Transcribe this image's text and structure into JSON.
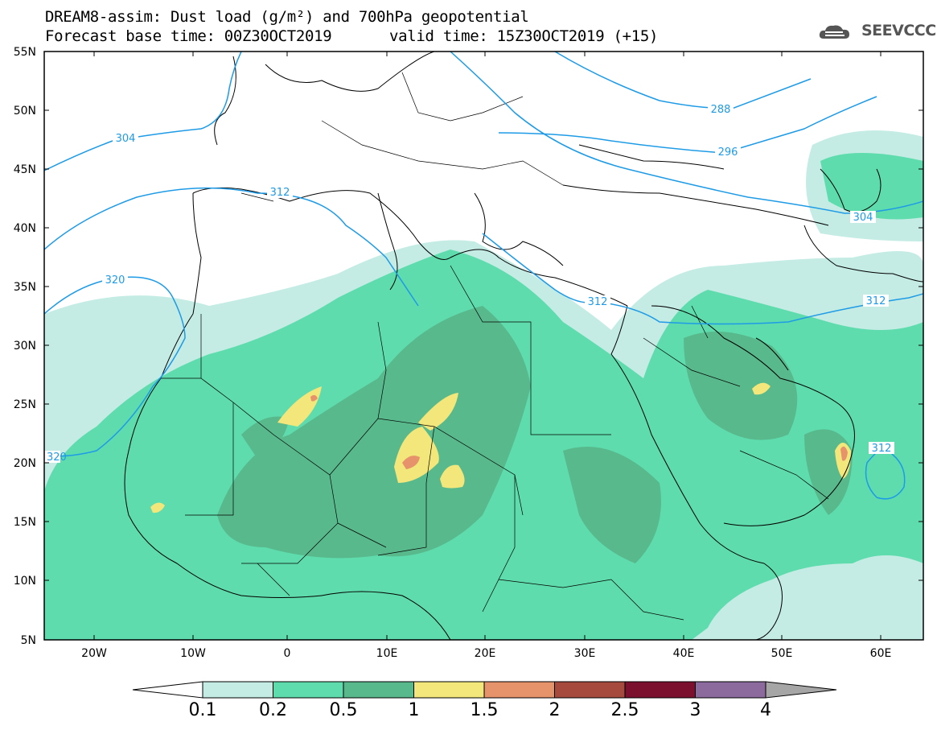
{
  "title": {
    "line1": "DREAM8-assim: Dust load (g/m²) and 700hPa geopotential",
    "line2": "Forecast base time: 00Z30OCT2019",
    "valid": "valid time: 15Z30OCT2019 (+15)"
  },
  "logo": {
    "text": "SEEVCCC",
    "icon": "cloud-icon"
  },
  "map": {
    "lat_labels": [
      "55N",
      "50N",
      "45N",
      "40N",
      "35N",
      "30N",
      "25N",
      "20N",
      "15N",
      "10N",
      "5N"
    ],
    "lon_labels": [
      "20W",
      "10W",
      "0",
      "10E",
      "20E",
      "30E",
      "40E",
      "50E",
      "60E"
    ],
    "contours": [
      {
        "label": "288"
      },
      {
        "label": "296"
      },
      {
        "label": "304"
      },
      {
        "label": "304"
      },
      {
        "label": "312"
      },
      {
        "label": "312"
      },
      {
        "label": "312"
      },
      {
        "label": "312"
      },
      {
        "label": "320"
      },
      {
        "label": "320"
      }
    ],
    "contour_color": "#1e9be6"
  },
  "colorbar": {
    "labels": [
      "0.1",
      "0.2",
      "0.5",
      "1",
      "1.5",
      "2",
      "2.5",
      "3",
      "4"
    ],
    "colors": [
      "#c4ece4",
      "#5fdcad",
      "#58b98c",
      "#f3e67a",
      "#e6926a",
      "#a64a3e",
      "#7a0f2e",
      "#8c6a9e"
    ],
    "under_color": "#ffffff",
    "over_color": "#a6a6a6"
  }
}
